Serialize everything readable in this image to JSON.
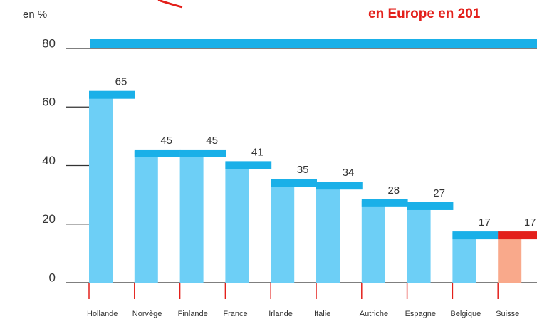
{
  "chart_data": {
    "type": "bar",
    "title": "en Europe en 201",
    "y_label": "en %",
    "categories": [
      "Hollande",
      "Norvège",
      "Finlande",
      "France",
      "Irlande",
      "Italie",
      "Autriche",
      "Espagne",
      "Belgique",
      "Suisse"
    ],
    "values": [
      65,
      45,
      45,
      41,
      35,
      34,
      28,
      27,
      17,
      17
    ],
    "colors": [
      "#6dcff6",
      "#6dcff6",
      "#6dcff6",
      "#6dcff6",
      "#6dcff6",
      "#6dcff6",
      "#6dcff6",
      "#6dcff6",
      "#6dcff6",
      "#f9a98b"
    ],
    "cap_colors": [
      "#1ab0e8",
      "#1ab0e8",
      "#1ab0e8",
      "#1ab0e8",
      "#1ab0e8",
      "#1ab0e8",
      "#1ab0e8",
      "#1ab0e8",
      "#1ab0e8",
      "#e3201b"
    ],
    "ylim": [
      0,
      80
    ],
    "yticks": [
      0,
      20,
      40,
      60,
      80
    ]
  }
}
